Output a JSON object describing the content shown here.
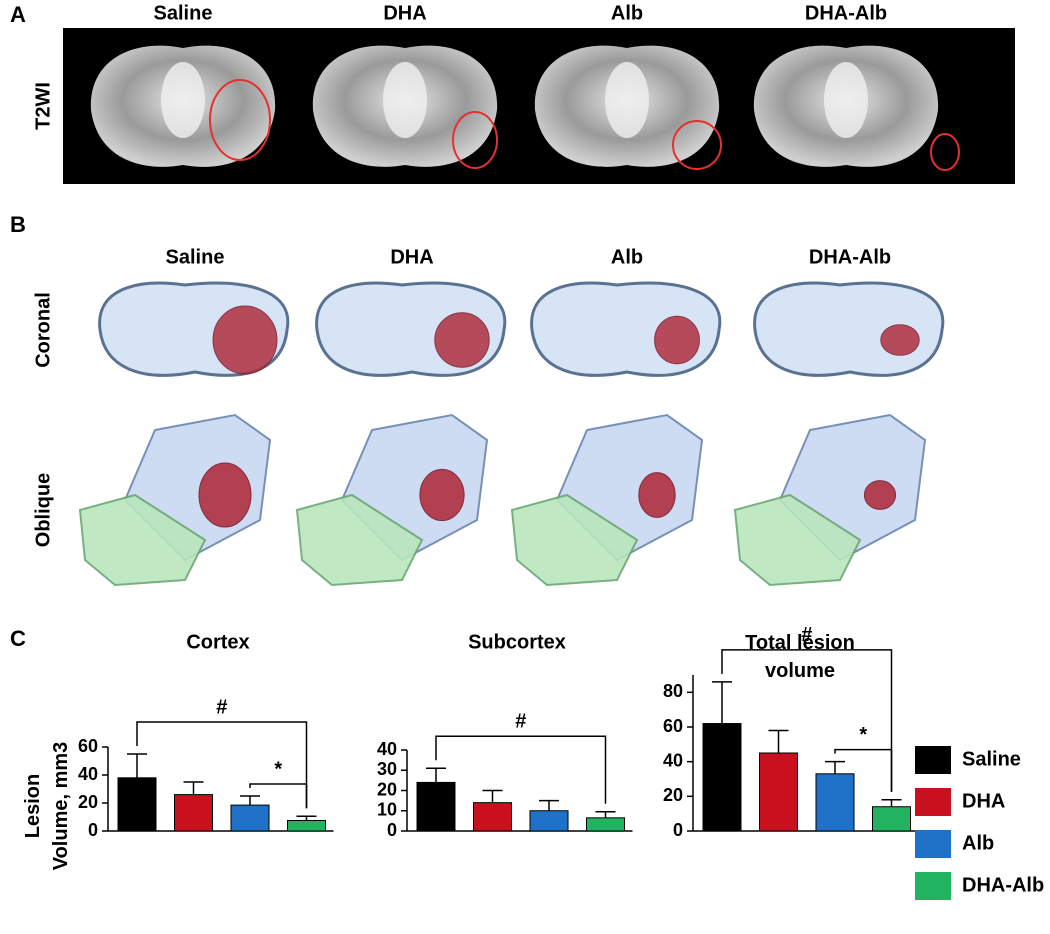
{
  "panels": {
    "a": {
      "label": "A",
      "row_label": "T2WI",
      "columns": [
        "Saline",
        "DHA",
        "Alb",
        "DHA-Alb"
      ]
    },
    "b": {
      "label": "B",
      "columns": [
        "Saline",
        "DHA",
        "Alb",
        "DHA-Alb"
      ],
      "rows": [
        "Coronal",
        "Oblique"
      ]
    },
    "c": {
      "label": "C",
      "y_label": "Lesion Volume, mm3"
    }
  },
  "groups": [
    {
      "name": "Saline",
      "color": "#000000"
    },
    {
      "name": "DHA",
      "color": "#c8101e"
    },
    {
      "name": "Alb",
      "color": "#1f72c8"
    },
    {
      "name": "DHA-Alb",
      "color": "#21b35f"
    }
  ],
  "chart_data": [
    {
      "type": "bar",
      "title": "Cortex",
      "values": [
        38,
        26,
        18.5,
        7.5
      ],
      "errors": [
        17,
        9,
        6.5,
        3
      ],
      "ylim": [
        0,
        60
      ],
      "yticks": [
        0,
        20,
        40,
        60
      ],
      "annotations": [
        {
          "text": "#",
          "between": [
            0,
            3
          ]
        },
        {
          "text": "*",
          "between": [
            2,
            3
          ]
        }
      ]
    },
    {
      "type": "bar",
      "title": "Subcortex",
      "values": [
        24,
        14,
        10,
        6.5
      ],
      "errors": [
        7,
        6,
        5,
        3
      ],
      "ylim": [
        0,
        40
      ],
      "yticks": [
        0,
        10,
        20,
        30,
        40
      ],
      "annotations": [
        {
          "text": "#",
          "between": [
            0,
            3
          ]
        }
      ]
    },
    {
      "type": "bar",
      "title": "Total lesion volume",
      "values": [
        62,
        45,
        33,
        14
      ],
      "errors": [
        24,
        13,
        7,
        4
      ],
      "ylim": [
        0,
        90
      ],
      "yticks": [
        0,
        20,
        40,
        60,
        80
      ],
      "annotations": [
        {
          "text": "#",
          "between": [
            0,
            3
          ]
        },
        {
          "text": "*",
          "between": [
            2,
            3
          ]
        }
      ]
    }
  ]
}
